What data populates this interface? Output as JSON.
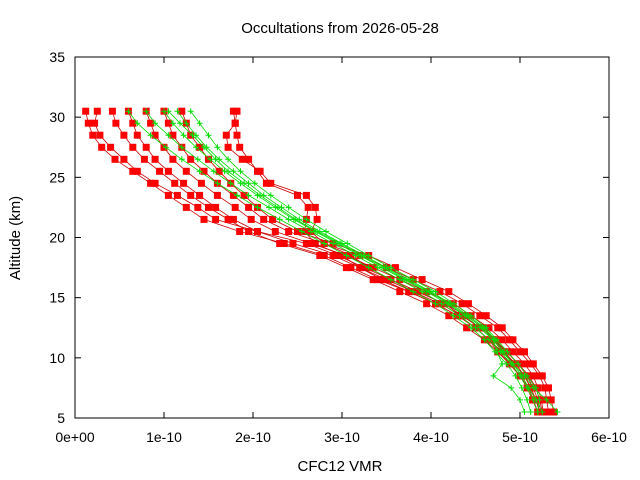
{
  "chart_data": {
    "type": "scatter",
    "title": "Occultations from 2026-05-28",
    "xlabel": "CFC12 VMR",
    "ylabel": "Altitude (km)",
    "xlim": [
      0,
      6e-10
    ],
    "ylim": [
      5,
      35
    ],
    "x_tick_labels": [
      "0e+00",
      "1e-10",
      "2e-10",
      "3e-10",
      "4e-10",
      "5e-10",
      "6e-10"
    ],
    "y_tick_labels": [
      "5",
      "10",
      "15",
      "20",
      "25",
      "30",
      "35"
    ],
    "grid": false,
    "legend": "none",
    "series_colors": {
      "red": "#ff0000",
      "green": "#00dd00"
    },
    "y_levels": [
      30.5,
      29.5,
      28.5,
      27.5,
      26.5,
      25.5,
      24.5,
      23.5,
      22.5,
      21.5,
      20.5,
      19.5,
      18.5,
      17.5,
      16.5,
      15.5,
      14.5,
      13.5,
      12.5,
      11.5,
      10.5,
      9.5,
      8.5,
      7.5,
      6.5,
      5.5
    ],
    "red_profiles": [
      [
        1.2e-11,
        1.5e-11,
        2e-11,
        3e-11,
        4.5e-11,
        6.5e-11,
        8.5e-11,
        1.05e-10,
        1.25e-10,
        1.45e-10,
        1.85e-10,
        2.35e-10,
        2.8e-10,
        3.1e-10,
        3.4e-10,
        3.75e-10,
        4.05e-10,
        4.3e-10,
        4.5e-10,
        4.65e-10,
        4.75e-10,
        4.9e-10,
        5e-10,
        5.1e-10,
        5.15e-10,
        5.2e-10
      ],
      [
        2.5e-11,
        2.2e-11,
        2.8e-11,
        4e-11,
        5.5e-11,
        7e-11,
        9e-11,
        1.15e-10,
        1.38e-10,
        1.58e-10,
        2.05e-10,
        2.6e-10,
        2.95e-10,
        3.25e-10,
        3.55e-10,
        3.85e-10,
        4.15e-10,
        4.35e-10,
        4.55e-10,
        4.7e-10,
        4.82e-10,
        4.95e-10,
        5.05e-10,
        5.12e-10,
        5.18e-10,
        5.22e-10
      ],
      [
        1.78e-10,
        1.8e-10,
        1.82e-10,
        1.85e-10,
        1.95e-10,
        2.05e-10,
        2.15e-10,
        2.5e-10,
        2.62e-10,
        2.6e-10,
        2.58e-10,
        2.7e-10,
        3e-10,
        3.2e-10,
        3.45e-10,
        3.75e-10,
        4.05e-10,
        4.3e-10,
        4.5e-10,
        4.65e-10,
        4.8e-10,
        4.95e-10,
        5.05e-10,
        5.12e-10,
        5.18e-10,
        5.22e-10
      ],
      [
        1.82e-10,
        1.8e-10,
        1.7e-10,
        1.72e-10,
        1.88e-10,
        2.08e-10,
        2.2e-10,
        2.6e-10,
        2.7e-10,
        2.72e-10,
        2.65e-10,
        2.8e-10,
        3.1e-10,
        3.3e-10,
        3.55e-10,
        3.85e-10,
        4.15e-10,
        4.4e-10,
        4.58e-10,
        4.72e-10,
        4.85e-10,
        4.98e-10,
        5.08e-10,
        5.15e-10,
        5.2e-10,
        5.24e-10
      ],
      [
        4.2e-11,
        4.6e-11,
        5.5e-11,
        6.5e-11,
        7.8e-11,
        9.5e-11,
        1.12e-10,
        1.3e-10,
        1.5e-10,
        1.72e-10,
        1.95e-10,
        2.3e-10,
        2.75e-10,
        3.05e-10,
        3.35e-10,
        3.65e-10,
        3.95e-10,
        4.2e-10,
        4.4e-10,
        4.6e-10,
        4.75e-10,
        4.88e-10,
        5e-10,
        5.08e-10,
        5.14e-10,
        5.2e-10
      ],
      [
        6e-11,
        6.5e-11,
        7e-11,
        8e-11,
        9e-11,
        1.05e-10,
        1.22e-10,
        1.4e-10,
        1.58e-10,
        1.78e-10,
        2.05e-10,
        2.45e-10,
        2.9e-10,
        3.2e-10,
        3.5e-10,
        3.8e-10,
        4.1e-10,
        4.35e-10,
        4.55e-10,
        4.7e-10,
        4.85e-10,
        4.98e-10,
        5.1e-10,
        5.18e-10,
        5.22e-10,
        5.25e-10
      ],
      [
        8e-11,
        8.5e-11,
        9e-11,
        1e-10,
        1.1e-10,
        1.25e-10,
        1.42e-10,
        1.6e-10,
        1.8e-10,
        1.98e-10,
        2.25e-10,
        2.65e-10,
        3.05e-10,
        3.35e-10,
        3.65e-10,
        3.95e-10,
        4.25e-10,
        4.45e-10,
        4.65e-10,
        4.8e-10,
        4.92e-10,
        5.05e-10,
        5.15e-10,
        5.2e-10,
        5.24e-10,
        5.26e-10
      ],
      [
        1e-10,
        1.05e-10,
        1.1e-10,
        1.2e-10,
        1.3e-10,
        1.45e-10,
        1.6e-10,
        1.78e-10,
        1.95e-10,
        2.12e-10,
        2.4e-10,
        2.8e-10,
        3.2e-10,
        3.5e-10,
        3.8e-10,
        4.1e-10,
        4.35e-10,
        4.55e-10,
        4.75e-10,
        4.88e-10,
        5e-10,
        5.12e-10,
        5.22e-10,
        5.28e-10,
        5.3e-10,
        5.32e-10
      ],
      [
        1.2e-10,
        1.25e-10,
        1.3e-10,
        1.4e-10,
        1.5e-10,
        1.62e-10,
        1.75e-10,
        1.9e-10,
        2.05e-10,
        2.22e-10,
        2.5e-10,
        2.9e-10,
        3.3e-10,
        3.6e-10,
        3.9e-10,
        4.2e-10,
        4.42e-10,
        4.62e-10,
        4.8e-10,
        4.92e-10,
        5.05e-10,
        5.15e-10,
        5.25e-10,
        5.32e-10,
        5.35e-10,
        5.38e-10
      ]
    ],
    "green_profiles": [
      [
        6e-11,
        7e-11,
        8.5e-11,
        1.02e-10,
        1.2e-10,
        1.4e-10,
        1.6e-10,
        1.82e-10,
        2.05e-10,
        2.3e-10,
        2.55e-10,
        2.8e-10,
        3.05e-10,
        3.3e-10,
        3.55e-10,
        3.8e-10,
        4.05e-10,
        4.25e-10,
        4.45e-10,
        4.6e-10,
        4.72e-10,
        4.85e-10,
        4.95e-10,
        5.02e-10,
        5.08e-10,
        5.12e-10
      ],
      [
        8e-11,
        9e-11,
        1.05e-10,
        1.2e-10,
        1.38e-10,
        1.56e-10,
        1.75e-10,
        1.95e-10,
        2.18e-10,
        2.4e-10,
        2.65e-10,
        2.9e-10,
        3.15e-10,
        3.4e-10,
        3.65e-10,
        3.9e-10,
        4.12e-10,
        4.32e-10,
        4.5e-10,
        4.65e-10,
        4.78e-10,
        4.9e-10,
        5e-10,
        5.08e-10,
        5.15e-10,
        5.2e-10
      ],
      [
        1e-10,
        1.1e-10,
        1.22e-10,
        1.36e-10,
        1.52e-10,
        1.68e-10,
        1.86e-10,
        2.05e-10,
        2.25e-10,
        2.46e-10,
        2.7e-10,
        2.95e-10,
        3.2e-10,
        3.45e-10,
        3.7e-10,
        3.95e-10,
        4.18e-10,
        4.38e-10,
        4.55e-10,
        4.7e-10,
        4.8e-10,
        4.92e-10,
        5.02e-10,
        5.1e-10,
        5.18e-10,
        5.25e-10
      ],
      [
        1.15e-10,
        1.25e-10,
        1.36e-10,
        1.48e-10,
        1.62e-10,
        1.78e-10,
        1.95e-10,
        2.12e-10,
        2.32e-10,
        2.52e-10,
        2.75e-10,
        3e-10,
        3.25e-10,
        3.5e-10,
        3.75e-10,
        4e-10,
        4.22e-10,
        4.42e-10,
        4.6e-10,
        4.72e-10,
        4.82e-10,
        4.92e-10,
        5.05e-10,
        5.15e-10,
        5.3e-10,
        5.42e-10
      ],
      [
        1.3e-10,
        1.4e-10,
        1.5e-10,
        1.6e-10,
        1.72e-10,
        1.86e-10,
        2.02e-10,
        2.2e-10,
        2.4e-10,
        2.6e-10,
        2.82e-10,
        3.06e-10,
        3.3e-10,
        3.55e-10,
        3.8e-10,
        4.05e-10,
        4.26e-10,
        4.45e-10,
        4.62e-10,
        4.74e-10,
        4.86e-10,
        4.98e-10,
        5.08e-10,
        5.18e-10,
        5.22e-10,
        5.2e-10
      ],
      [
        1.05e-10,
        1.18e-10,
        1.32e-10,
        1.45e-10,
        1.58e-10,
        1.72e-10,
        1.9e-10,
        2.08e-10,
        2.28e-10,
        2.48e-10,
        2.72e-10,
        2.98e-10,
        3.22e-10,
        3.48e-10,
        3.72e-10,
        3.98e-10,
        4.2e-10,
        4.4e-10,
        4.58e-10,
        4.7e-10,
        4.74e-10,
        4.8e-10,
        4.7e-10,
        4.9e-10,
        5e-10,
        5.05e-10
      ]
    ]
  }
}
